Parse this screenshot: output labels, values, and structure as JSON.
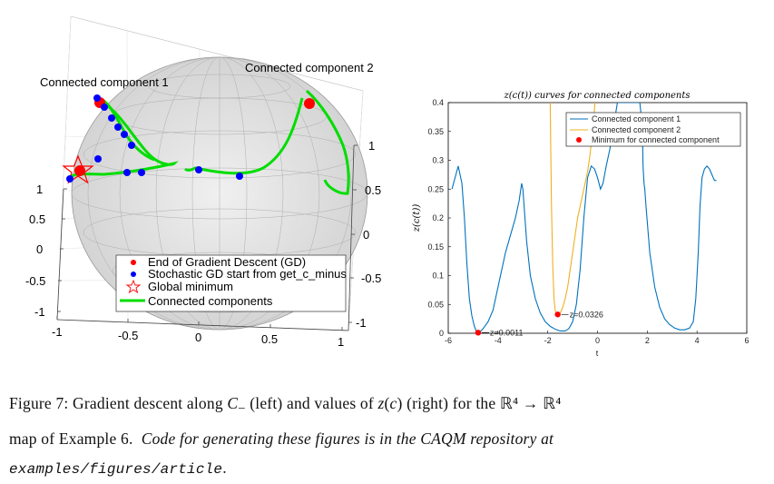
{
  "chart_data": [
    {
      "type": "scatter",
      "projection": "3d-sphere",
      "labels": {
        "component1": "Connected component 1",
        "component2": "Connected component 2"
      },
      "x_ticks": [
        "-1",
        "-0.5",
        "0",
        "0.5",
        "1"
      ],
      "y_ticks_left": [
        "1",
        "0.5",
        "0",
        "-0.5",
        "-1"
      ],
      "z_ticks_right": [
        "1",
        "0.5",
        "0",
        "-0.5",
        "-1"
      ],
      "legend": {
        "placement": "lower-center",
        "entries": [
          {
            "label": "End of Gradient Descent (GD)",
            "marker": "red-dot",
            "color": "#ff0000"
          },
          {
            "label": "Stochastic GD start from get_c_minus",
            "marker": "blue-dot",
            "color": "#0000ff"
          },
          {
            "label": "Global minimum",
            "marker": "red-star",
            "color": "#ff0000"
          },
          {
            "label": "Connected components",
            "marker": "line",
            "color": "#00dd00"
          }
        ]
      }
    },
    {
      "type": "line",
      "title": "z(c(t)) curves for connected components",
      "xlabel": "t",
      "ylabel": "z(c(t))",
      "xlim": [
        -6,
        6
      ],
      "ylim": [
        0,
        0.4
      ],
      "x_ticks": [
        -6,
        -4,
        -2,
        0,
        2,
        4,
        6
      ],
      "y_ticks": [
        0,
        0.05,
        0.1,
        0.15,
        0.2,
        0.25,
        0.3,
        0.35,
        0.4
      ],
      "grid": false,
      "legend_placement": "top-right",
      "series": [
        {
          "name": "Connected component 1",
          "color": "#0072bd",
          "x": [
            -5.85,
            -5.6,
            -5.45,
            -5.35,
            -5.25,
            -5.15,
            -5.05,
            -4.95,
            -4.85,
            -4.75,
            -4.6,
            -4.4,
            -4.2,
            -4.05,
            -3.9,
            -3.7,
            -3.5,
            -3.3,
            -3.15,
            -3.05,
            -3.0,
            -2.95,
            -2.85,
            -2.7,
            -2.5,
            -2.3,
            -2.1,
            -1.9,
            -1.7,
            -1.5,
            -1.3,
            -1.15,
            -1.0,
            -0.85,
            -0.7,
            -0.55,
            -0.4,
            -0.25,
            -0.12,
            0.0,
            0.12,
            0.22,
            0.35,
            0.5,
            0.65,
            0.8,
            0.9,
            1.0,
            1.15,
            1.3,
            1.5,
            1.7,
            1.8,
            1.83,
            1.87,
            1.9,
            1.95,
            2.1,
            2.3,
            2.5,
            2.7,
            2.9,
            3.1,
            3.3,
            3.5,
            3.7,
            3.85,
            3.95,
            4.05,
            4.12,
            4.2,
            4.3,
            4.4,
            4.5,
            4.6,
            4.7,
            4.78
          ],
          "y": [
            0.25,
            0.29,
            0.26,
            0.2,
            0.12,
            0.06,
            0.03,
            0.012,
            0.0011,
            0.0011,
            0.008,
            0.02,
            0.04,
            0.07,
            0.1,
            0.14,
            0.17,
            0.2,
            0.23,
            0.26,
            0.25,
            0.22,
            0.16,
            0.1,
            0.06,
            0.035,
            0.02,
            0.012,
            0.007,
            0.004,
            0.004,
            0.008,
            0.02,
            0.05,
            0.11,
            0.2,
            0.27,
            0.29,
            0.285,
            0.27,
            0.25,
            0.26,
            0.29,
            0.32,
            0.36,
            0.4,
            0.4,
            0.4,
            0.4,
            0.4,
            0.4,
            0.4,
            0.36,
            0.29,
            0.26,
            0.25,
            0.22,
            0.14,
            0.08,
            0.045,
            0.025,
            0.015,
            0.009,
            0.006,
            0.006,
            0.009,
            0.02,
            0.06,
            0.14,
            0.22,
            0.27,
            0.285,
            0.29,
            0.285,
            0.275,
            0.265,
            0.265
          ]
        },
        {
          "name": "Connected component 2",
          "color": "#edb120",
          "x": [
            -1.9,
            -1.88,
            -1.85,
            -1.8,
            -1.75,
            -1.7,
            -1.65,
            -1.6,
            -1.5,
            -1.4,
            -1.3,
            -1.2,
            -1.1,
            -1.0,
            -0.9,
            -0.8,
            -0.7,
            -0.6,
            -0.5,
            -0.4,
            -0.3,
            -0.2,
            -0.1
          ],
          "y": [
            0.4,
            0.32,
            0.22,
            0.12,
            0.06,
            0.04,
            0.033,
            0.0326,
            0.035,
            0.045,
            0.06,
            0.08,
            0.11,
            0.14,
            0.17,
            0.2,
            0.22,
            0.24,
            0.26,
            0.28,
            0.31,
            0.35,
            0.4
          ]
        }
      ],
      "minima": {
        "legend_label": "Minimum for connected component",
        "color": "#ff0000",
        "points": [
          {
            "x": -4.8,
            "y": 0.0011,
            "label": "z=0.0011"
          },
          {
            "x": -1.6,
            "y": 0.0326,
            "label": "z=0.0326"
          }
        ]
      }
    }
  ],
  "caption": {
    "p1": "Figure 7: Gradient descent along ",
    "sym_c": "C",
    "sub": "−",
    "p2": " (left) and values of ",
    "sym_z": "z",
    "p3": "(",
    "sym_c2": "c",
    "p4": ") (right) for the ",
    "r4a": "ℝ⁴",
    "arrow": " → ",
    "r4b": "ℝ⁴",
    "line2a": "map of Example 6.",
    "line2b": "Code for generating these figures is in the CAQM repository at",
    "path": "examples/figures/article",
    "end": "."
  }
}
